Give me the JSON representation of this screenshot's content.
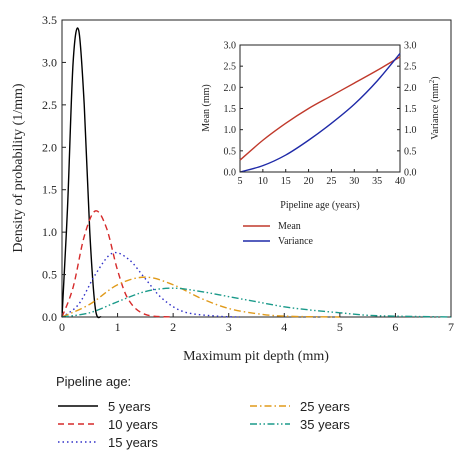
{
  "chart_data": [
    {
      "type": "line",
      "xlabel": "Maximum pit depth (mm)",
      "ylabel": "Density of probability (1/mm)",
      "xlim": [
        0,
        7
      ],
      "ylim": [
        0,
        3.5
      ],
      "xticks": [
        "0",
        "1",
        "2",
        "3",
        "4",
        "5",
        "6",
        "7"
      ],
      "yticks": [
        "0.0",
        "0.5",
        "1.0",
        "1.5",
        "2.0",
        "2.5",
        "3.0",
        "3.5"
      ],
      "grid": false,
      "legend_title": "Pipeline age:",
      "legend_position": "below",
      "series": [
        {
          "name": "5 years",
          "color": "#000000",
          "dash": "solid",
          "x": [
            0,
            0.1,
            0.2,
            0.3,
            0.4,
            0.5,
            0.6,
            0.7
          ],
          "y": [
            0,
            1.3,
            3.0,
            3.38,
            2.5,
            1.0,
            0.1,
            0
          ]
        },
        {
          "name": "10 years",
          "color": "#d62a2a",
          "dash": "dashed",
          "x": [
            0,
            0.2,
            0.4,
            0.6,
            0.8,
            1.0,
            1.2,
            1.5,
            2.0
          ],
          "y": [
            0,
            0.35,
            0.95,
            1.25,
            1.05,
            0.55,
            0.2,
            0.03,
            0
          ]
        },
        {
          "name": "15 years",
          "color": "#3030c8",
          "dash": "dotted",
          "x": [
            0,
            0.3,
            0.6,
            0.9,
            1.2,
            1.5,
            1.8,
            2.2,
            2.8,
            3.2
          ],
          "y": [
            0,
            0.15,
            0.5,
            0.75,
            0.68,
            0.45,
            0.22,
            0.06,
            0.01,
            0
          ]
        },
        {
          "name": "25 years",
          "color": "#e09a1a",
          "dash": "dashdot",
          "x": [
            0,
            0.5,
            1.0,
            1.5,
            2.0,
            2.5,
            3.0,
            3.5,
            4.0,
            5.0
          ],
          "y": [
            0,
            0.15,
            0.38,
            0.47,
            0.38,
            0.22,
            0.1,
            0.04,
            0.01,
            0
          ]
        },
        {
          "name": "35 years",
          "color": "#1a9a8a",
          "dash": "dashdotdot",
          "x": [
            0,
            0.5,
            1.0,
            1.5,
            2.0,
            2.5,
            3.0,
            3.5,
            4.0,
            4.5,
            5.0,
            5.5,
            6.0,
            7.0
          ],
          "y": [
            0,
            0.05,
            0.18,
            0.3,
            0.34,
            0.3,
            0.24,
            0.18,
            0.12,
            0.08,
            0.05,
            0.02,
            0.01,
            0
          ]
        }
      ]
    },
    {
      "type": "line",
      "xlabel": "Pipeline age (years)",
      "ylabel": "Mean (mm)",
      "y2label": "Variance (mm",
      "y2label_sup": "2",
      "y2label_close": ")",
      "xlim": [
        5,
        40
      ],
      "ylim": [
        0,
        3.0
      ],
      "y2lim": [
        0,
        3.0
      ],
      "xticks": [
        "5",
        "10",
        "15",
        "20",
        "25",
        "30",
        "35",
        "40"
      ],
      "yticks": [
        "0.0",
        "0.5",
        "1.0",
        "1.5",
        "2.0",
        "2.5",
        "3.0"
      ],
      "y2ticks": [
        "0.0",
        "0.5",
        "1.0",
        "1.5",
        "2.0",
        "2.5",
        "3.0"
      ],
      "legend_position": "below",
      "series": [
        {
          "name": "Mean",
          "color": "#c0392b",
          "x": [
            5,
            10,
            15,
            20,
            25,
            30,
            35,
            40
          ],
          "y": [
            0.28,
            0.75,
            1.15,
            1.5,
            1.8,
            2.1,
            2.4,
            2.72
          ]
        },
        {
          "name": "Variance",
          "color": "#1f2aa8",
          "x": [
            5,
            10,
            15,
            20,
            25,
            30,
            35,
            40
          ],
          "y": [
            0.0,
            0.15,
            0.4,
            0.75,
            1.15,
            1.6,
            2.15,
            2.8
          ]
        }
      ]
    }
  ]
}
